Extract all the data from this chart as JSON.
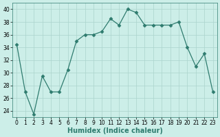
{
  "x": [
    0,
    1,
    2,
    3,
    4,
    5,
    6,
    7,
    8,
    9,
    10,
    11,
    12,
    13,
    14,
    15,
    16,
    17,
    18,
    19,
    20,
    21,
    22,
    23
  ],
  "y": [
    34.5,
    27,
    23.5,
    29.5,
    27,
    27,
    30.5,
    35,
    36,
    36,
    36.5,
    38.5,
    37.5,
    40,
    39.5,
    37.5,
    37.5,
    37.5,
    37.5,
    38,
    34,
    31,
    33,
    27
  ],
  "line_color": "#2e7b6e",
  "marker": "D",
  "markersize": 2.5,
  "bg_color": "#cceee8",
  "grid_color": "#aad4cc",
  "xlabel": "Humidex (Indice chaleur)",
  "ylim": [
    23,
    41
  ],
  "yticks": [
    24,
    26,
    28,
    30,
    32,
    34,
    36,
    38,
    40
  ],
  "xlim": [
    -0.5,
    23.5
  ],
  "label_fontsize": 7,
  "tick_fontsize": 5.5
}
